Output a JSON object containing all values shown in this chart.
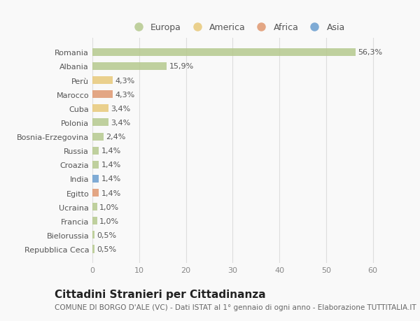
{
  "countries": [
    "Romania",
    "Albania",
    "Perù",
    "Marocco",
    "Cuba",
    "Polonia",
    "Bosnia-Erzegovina",
    "Russia",
    "Croazia",
    "India",
    "Egitto",
    "Ucraina",
    "Francia",
    "Bielorussia",
    "Repubblica Ceca"
  ],
  "values": [
    56.3,
    15.9,
    4.3,
    4.3,
    3.4,
    3.4,
    2.4,
    1.4,
    1.4,
    1.4,
    1.4,
    1.0,
    1.0,
    0.5,
    0.5
  ],
  "labels": [
    "56,3%",
    "15,9%",
    "4,3%",
    "4,3%",
    "3,4%",
    "3,4%",
    "2,4%",
    "1,4%",
    "1,4%",
    "1,4%",
    "1,4%",
    "1,0%",
    "1,0%",
    "0,5%",
    "0,5%"
  ],
  "colors": [
    "#b5c98e",
    "#b5c98e",
    "#e8c97a",
    "#e09870",
    "#e8c97a",
    "#b5c98e",
    "#b5c98e",
    "#b5c98e",
    "#b5c98e",
    "#6a9ecf",
    "#e09870",
    "#b5c98e",
    "#b5c98e",
    "#b5c98e",
    "#b5c98e"
  ],
  "legend_labels": [
    "Europa",
    "America",
    "Africa",
    "Asia"
  ],
  "legend_colors": [
    "#b5c98e",
    "#e8c97a",
    "#e09870",
    "#6a9ecf"
  ],
  "xlim": [
    0,
    62
  ],
  "xticks": [
    0,
    10,
    20,
    30,
    40,
    50,
    60
  ],
  "title": "Cittadini Stranieri per Cittadinanza",
  "subtitle": "COMUNE DI BORGO D'ALE (VC) - Dati ISTAT al 1° gennaio di ogni anno - Elaborazione TUTTITALIA.IT",
  "background_color": "#f9f9f9",
  "bar_height": 0.55,
  "label_fontsize": 8,
  "tick_fontsize": 8,
  "title_fontsize": 11,
  "subtitle_fontsize": 7.5
}
